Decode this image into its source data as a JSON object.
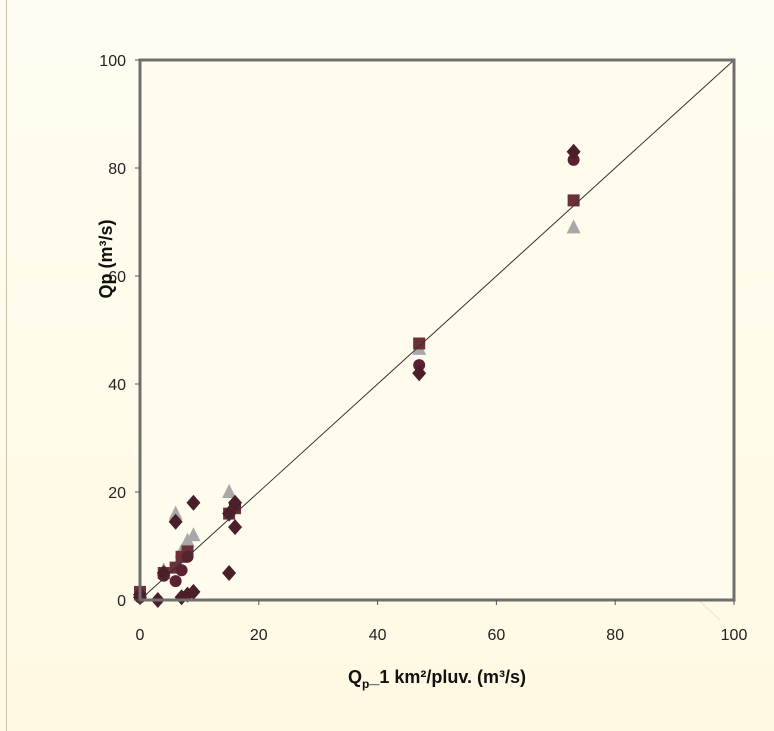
{
  "chart_data": {
    "type": "scatter",
    "xlabel": "Q_p_1 km²/pluv. (m³/s)",
    "xlabel_parts": {
      "main": "Q",
      "sub": "p",
      "rest": "_1 km²/pluv. (m³/s)"
    },
    "ylabel": "Qp (m³/s)",
    "xlim": [
      0,
      100
    ],
    "ylim": [
      0,
      100
    ],
    "x_ticks": [
      0,
      20,
      40,
      60,
      80,
      100
    ],
    "y_ticks": [
      0,
      20,
      40,
      60,
      80,
      100
    ],
    "x_tick_labels": [
      "0",
      "20",
      "40",
      "60",
      "80",
      "100"
    ],
    "y_tick_labels": [
      "0",
      "20",
      "40",
      "60",
      "80",
      "100"
    ],
    "reference_line": {
      "x": [
        0,
        100
      ],
      "y": [
        0,
        100
      ]
    },
    "grid": false,
    "legend": "none",
    "colors": {
      "diamond": "#4a1f2a",
      "circle": "#5a2230",
      "square": "#6b3038",
      "triangle": "#a8a8a8"
    },
    "series": [
      {
        "marker": "diamond",
        "points": [
          [
            0,
            1
          ],
          [
            0,
            0.5
          ],
          [
            3,
            0
          ],
          [
            4,
            5
          ],
          [
            6,
            14.5
          ],
          [
            7,
            0.5
          ],
          [
            8,
            1
          ],
          [
            9,
            18
          ],
          [
            9,
            1.5
          ],
          [
            15,
            5
          ],
          [
            15,
            16
          ],
          [
            16,
            13.5
          ],
          [
            16,
            18
          ],
          [
            47,
            42
          ],
          [
            73,
            83
          ]
        ]
      },
      {
        "marker": "circle",
        "points": [
          [
            0,
            0.5
          ],
          [
            4,
            4.5
          ],
          [
            6,
            3.5
          ],
          [
            7,
            5.5
          ],
          [
            8,
            8
          ],
          [
            16,
            17.5
          ],
          [
            47,
            43.5
          ],
          [
            73,
            81.5
          ]
        ]
      },
      {
        "marker": "square",
        "points": [
          [
            0,
            1.5
          ],
          [
            4,
            5
          ],
          [
            6,
            6
          ],
          [
            7,
            8
          ],
          [
            8,
            9
          ],
          [
            15,
            16
          ],
          [
            16,
            17
          ],
          [
            47,
            47.5
          ],
          [
            73,
            74
          ]
        ]
      },
      {
        "marker": "triangle",
        "points": [
          [
            0,
            1
          ],
          [
            4,
            5.5
          ],
          [
            6,
            16
          ],
          [
            7,
            9
          ],
          [
            8,
            11
          ],
          [
            9,
            12
          ],
          [
            15,
            20
          ],
          [
            47,
            46.5
          ],
          [
            73,
            69
          ]
        ]
      }
    ]
  }
}
